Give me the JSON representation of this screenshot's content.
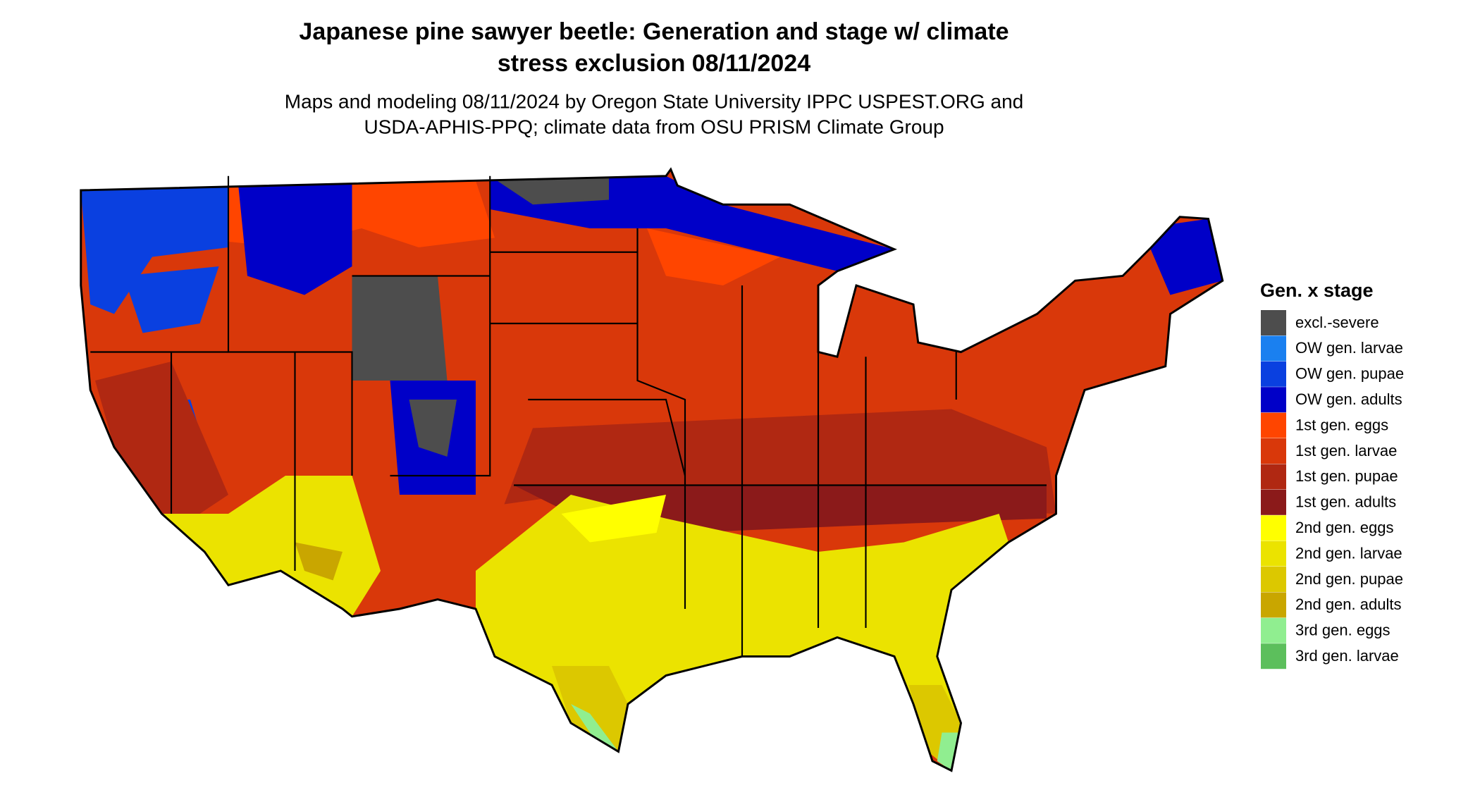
{
  "header": {
    "title": [
      "Japanese pine sawyer beetle: Generation and stage w/ climate",
      "stress exclusion 08/11/2024"
    ],
    "subtitle": [
      "Maps and modeling 08/11/2024 by Oregon State University IPPC USPEST.ORG and",
      "USDA-APHIS-PPQ; climate data from OSU PRISM Climate Group"
    ]
  },
  "legend": {
    "title": "Gen. x stage",
    "items": [
      {
        "label": "excl.-severe",
        "color": "#4d4d4d"
      },
      {
        "label": "OW gen. larvae",
        "color": "#1a80f0"
      },
      {
        "label": "OW gen. pupae",
        "color": "#0a40e0"
      },
      {
        "label": "OW gen. adults",
        "color": "#0000c8"
      },
      {
        "label": "1st gen. eggs",
        "color": "#ff4500"
      },
      {
        "label": "1st gen. larvae",
        "color": "#d9380a"
      },
      {
        "label": "1st gen. pupae",
        "color": "#b02812"
      },
      {
        "label": "1st gen. adults",
        "color": "#8b1a1a"
      },
      {
        "label": "2nd gen. eggs",
        "color": "#ffff00"
      },
      {
        "label": "2nd gen. larvae",
        "color": "#ebe300"
      },
      {
        "label": "2nd gen. pupae",
        "color": "#dcc800"
      },
      {
        "label": "2nd gen. adults",
        "color": "#c9a600"
      },
      {
        "label": "3rd gen. eggs",
        "color": "#90ee90"
      },
      {
        "label": "3rd gen. larvae",
        "color": "#5cbf5c"
      }
    ]
  }
}
